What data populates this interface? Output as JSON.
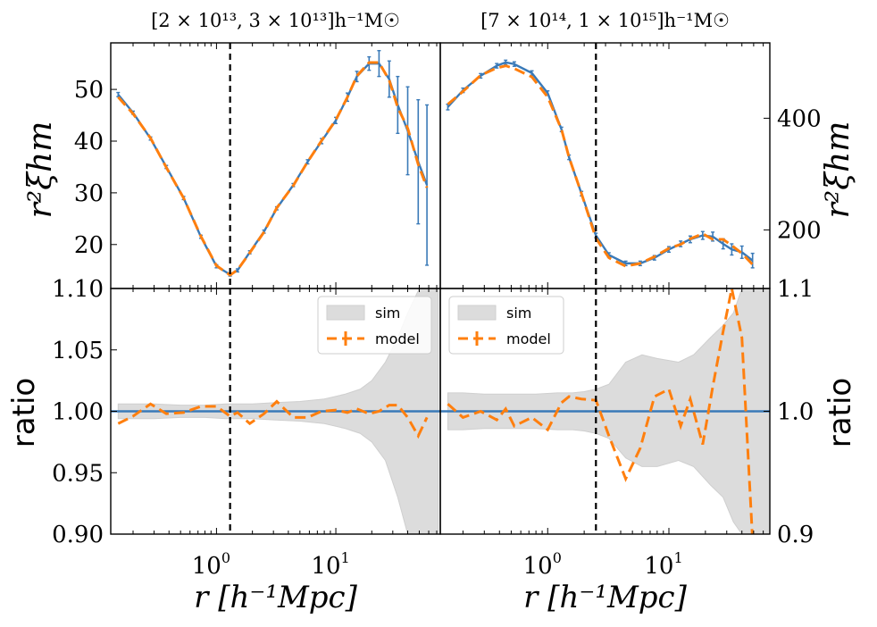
{
  "chart_data": {
    "type": "line",
    "layout": "2x2 panels, shared log x-axis per column",
    "colors": {
      "sim": "#3a7ab8",
      "model": "#ff7f0e",
      "band": "#dcdcdc",
      "band_edge": "#cfcfcf",
      "axis": "#000000"
    },
    "xlabel": "r [h⁻¹Mpc]",
    "xticks": [
      {
        "value": 1,
        "mantissa": "10",
        "exp": "0"
      },
      {
        "value": 10,
        "mantissa": "10",
        "exp": "1"
      }
    ],
    "top_ylabel": "r²ξhm",
    "bottom_ylabel": "ratio",
    "legend": {
      "band": "sim",
      "line": "model",
      "position": "upper right"
    },
    "panels": [
      {
        "title": "[2 × 10¹³, 3 × 10¹³]h⁻¹M☉",
        "xlim": [
          0.13,
          75
        ],
        "vline": 1.3,
        "top": {
          "ylim": [
            11.5,
            59
          ],
          "yticks": [
            20,
            30,
            40,
            50
          ],
          "ytick_labels": [
            "20",
            "30",
            "40",
            "50"
          ],
          "sim": {
            "x": [
              0.15,
              0.2,
              0.28,
              0.38,
              0.53,
              0.74,
              1.0,
              1.3,
              1.5,
              1.9,
              2.5,
              3.2,
              4.4,
              5.8,
              7.6,
              10.0,
              12.5,
              15.0,
              19.0,
              23.0,
              28.0,
              33.0,
              40.0,
              49.0,
              58.0
            ],
            "y": [
              49.0,
              45.5,
              40.5,
              35.0,
              29.0,
              21.5,
              15.8,
              14.2,
              15.0,
              18.5,
              22.5,
              27.0,
              31.5,
              36.0,
              40.0,
              44.0,
              48.5,
              52.5,
              55.0,
              55.0,
              52.0,
              47.0,
              42.0,
              36.0,
              31.5
            ],
            "err": [
              0.4,
              0.3,
              0.3,
              0.3,
              0.3,
              0.3,
              0.3,
              0.3,
              0.3,
              0.3,
              0.3,
              0.3,
              0.3,
              0.4,
              0.5,
              0.6,
              0.8,
              1.0,
              1.3,
              2.5,
              3.5,
              5.5,
              8.5,
              12.0,
              15.5
            ]
          },
          "model": {
            "x": [
              0.15,
              0.2,
              0.28,
              0.38,
              0.53,
              0.74,
              1.0,
              1.3,
              1.5,
              1.9,
              2.5,
              3.2,
              4.4,
              5.8,
              7.6,
              10.0,
              12.5,
              15.0,
              19.0,
              23.0,
              28.0,
              33.0,
              40.0,
              49.0,
              58.0
            ],
            "y": [
              48.5,
              45.3,
              40.6,
              34.9,
              29.0,
              21.6,
              15.9,
              14.1,
              15.1,
              18.4,
              22.4,
              27.1,
              31.4,
              36.0,
              40.1,
              44.1,
              48.5,
              52.6,
              55.2,
              55.2,
              51.8,
              46.5,
              42.5,
              35.5,
              31.0
            ]
          }
        },
        "ratio": {
          "ylim": [
            0.9,
            1.1
          ],
          "yticks": [
            0.9,
            0.95,
            1.0,
            1.05,
            1.1
          ],
          "ytick_labels": [
            "0.90",
            "0.95",
            "1.00",
            "1.05",
            "1.10"
          ],
          "band_x": [
            0.15,
            0.2,
            0.3,
            0.5,
            0.8,
            1.2,
            2,
            3,
            5,
            8,
            12,
            16,
            20,
            26,
            33,
            40,
            50,
            60,
            72
          ],
          "band_low": [
            0.994,
            0.994,
            0.994,
            0.995,
            0.995,
            0.994,
            0.994,
            0.993,
            0.992,
            0.99,
            0.986,
            0.982,
            0.975,
            0.96,
            0.93,
            0.9,
            0.9,
            0.9,
            0.9
          ],
          "band_high": [
            1.006,
            1.006,
            1.006,
            1.005,
            1.005,
            1.006,
            1.006,
            1.007,
            1.008,
            1.01,
            1.014,
            1.018,
            1.025,
            1.04,
            1.06,
            1.08,
            1.1,
            1.1,
            1.1
          ],
          "model_x": [
            0.15,
            0.2,
            0.28,
            0.38,
            0.53,
            0.74,
            1.0,
            1.3,
            1.5,
            1.9,
            2.5,
            3.2,
            4.4,
            5.8,
            7.6,
            10.0,
            12.5,
            15.0,
            19.0,
            23.0,
            28.0,
            33.0,
            40.0,
            49.0,
            58.0
          ],
          "model_y": [
            0.99,
            0.996,
            1.006,
            0.998,
            0.999,
            1.004,
            1.004,
            0.996,
            0.999,
            0.99,
            0.998,
            1.008,
            0.995,
            0.995,
            1.0,
            1.001,
            0.999,
            1.002,
            0.998,
            1.0,
            1.005,
            1.005,
            0.995,
            0.98,
            0.995
          ]
        }
      },
      {
        "title": "[7 × 10¹⁴, 1 × 10¹⁵]h⁻¹M☉",
        "xlim": [
          0.13,
          68
        ],
        "vline": 2.5,
        "top": {
          "ylim": [
            95,
            535
          ],
          "yticks": [
            200,
            400
          ],
          "ytick_labels": [
            "200",
            "400"
          ],
          "sim": {
            "x": [
              0.15,
              0.2,
              0.28,
              0.38,
              0.45,
              0.53,
              0.74,
              1.0,
              1.3,
              1.5,
              1.9,
              2.5,
              3.2,
              4.4,
              5.8,
              7.6,
              10.0,
              12.5,
              15.0,
              19.0,
              23.0,
              28.0,
              33.0,
              40.0,
              49.0
            ],
            "y": [
              420,
              450,
              476,
              494,
              500,
              497,
              481,
              445,
              380,
              330,
              265,
              190,
              155,
              140,
              140,
              150,
              165,
              175,
              183,
              190,
              188,
              175,
              165,
              160,
              145
            ],
            "err": [
              5,
              4,
              4,
              4,
              4,
              4,
              4,
              4,
              4,
              4,
              4,
              4,
              4,
              4,
              4,
              4,
              5,
              5,
              6,
              7,
              8,
              9,
              10,
              11,
              13
            ]
          },
          "model": {
            "x": [
              0.15,
              0.2,
              0.28,
              0.38,
              0.45,
              0.53,
              0.74,
              1.0,
              1.3,
              1.5,
              1.9,
              2.5,
              3.2,
              4.4,
              5.8,
              7.6,
              10.0,
              12.5,
              15.0,
              19.0,
              23.0,
              28.0,
              33.0,
              40.0,
              49.0
            ],
            "y": [
              425,
              448,
              477,
              490,
              494,
              489,
              474,
              438,
              380,
              330,
              265,
              185,
              150,
              135,
              140,
              152,
              167,
              174,
              184,
              193,
              183,
              183,
              172,
              158,
              138
            ]
          }
        },
        "ratio": {
          "ylim": [
            0.9,
            1.1
          ],
          "yticks": [
            0.9,
            1.0,
            1.1
          ],
          "ytick_labels": [
            "0.9",
            "1.0",
            "1.1"
          ],
          "band_x": [
            0.15,
            0.2,
            0.3,
            0.5,
            0.8,
            1.2,
            1.6,
            2.0,
            2.5,
            3.2,
            4.4,
            6,
            8,
            12,
            16,
            22,
            28,
            34,
            40,
            48,
            58,
            68
          ],
          "band_low": [
            0.985,
            0.985,
            0.986,
            0.986,
            0.986,
            0.985,
            0.985,
            0.984,
            0.982,
            0.978,
            0.962,
            0.955,
            0.955,
            0.96,
            0.955,
            0.94,
            0.93,
            0.91,
            0.9,
            0.9,
            0.9,
            0.9
          ],
          "band_high": [
            1.015,
            1.015,
            1.014,
            1.014,
            1.014,
            1.015,
            1.015,
            1.016,
            1.018,
            1.022,
            1.04,
            1.046,
            1.043,
            1.04,
            1.046,
            1.06,
            1.07,
            1.08,
            1.1,
            1.1,
            1.1,
            1.1
          ],
          "model_x": [
            0.15,
            0.2,
            0.28,
            0.38,
            0.45,
            0.53,
            0.74,
            1.0,
            1.3,
            1.5,
            1.9,
            2.5,
            3.2,
            4.4,
            5.8,
            7.6,
            10.0,
            12.5,
            15.0,
            19.0,
            23.0,
            28.0,
            33.0,
            40.0,
            49.0
          ],
          "model_y": [
            1.006,
            0.995,
            1.0,
            0.993,
            1.002,
            0.988,
            0.995,
            0.985,
            1.007,
            1.012,
            1.01,
            1.009,
            0.98,
            0.945,
            0.97,
            1.012,
            1.018,
            0.988,
            1.01,
            0.973,
            1.02,
            1.065,
            1.1,
            1.06,
            0.895
          ]
        }
      }
    ]
  }
}
